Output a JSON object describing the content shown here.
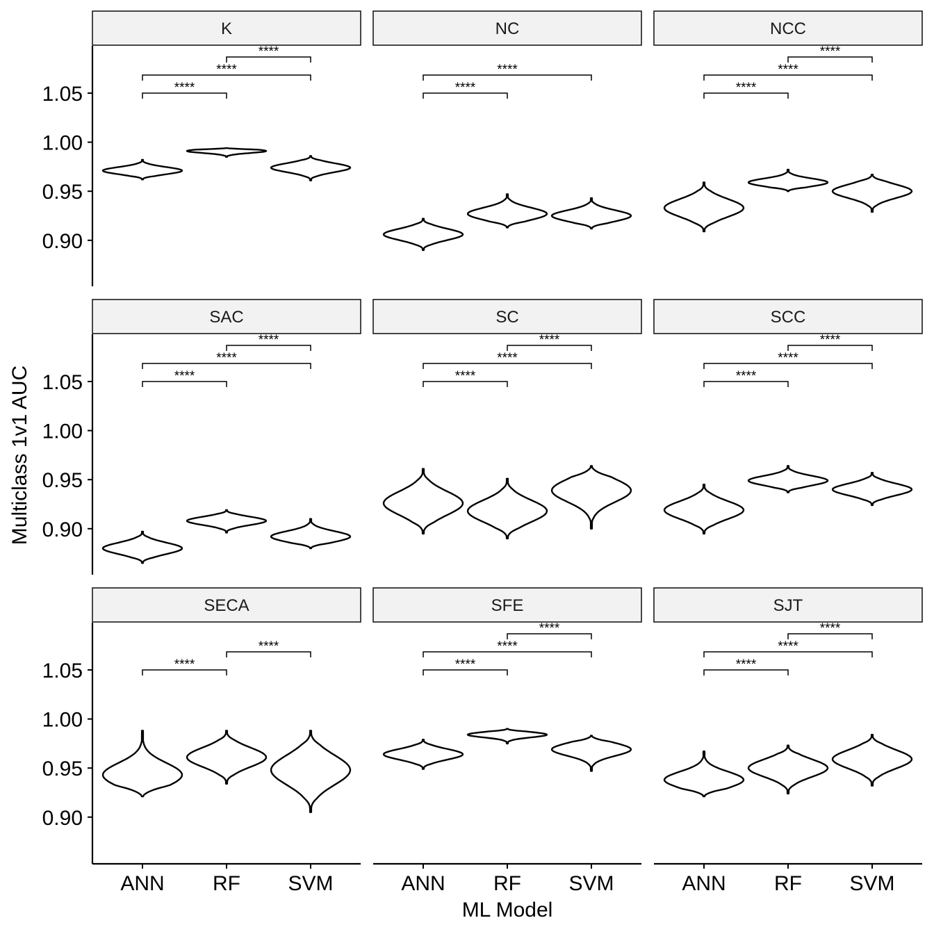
{
  "chart_data": {
    "type": "violin",
    "xlabel": "ML Model",
    "ylabel": "Multiclass 1v1 AUC",
    "categories": [
      "ANN",
      "RF",
      "SVM"
    ],
    "yticks": [
      0.9,
      0.95,
      1.0,
      1.05
    ],
    "ylim": [
      0.855,
      1.1
    ],
    "facets": [
      {
        "label": "K",
        "violins": [
          {
            "model": "ANN",
            "min": 0.962,
            "max": 0.982,
            "median": 0.971
          },
          {
            "model": "RF",
            "min": 0.985,
            "max": 0.994,
            "median": 0.991
          },
          {
            "model": "SVM",
            "min": 0.961,
            "max": 0.986,
            "median": 0.974
          }
        ],
        "comparisons": [
          {
            "group1": "ANN",
            "group2": "RF",
            "label": "****"
          },
          {
            "group1": "ANN",
            "group2": "SVM",
            "label": "****"
          },
          {
            "group1": "RF",
            "group2": "SVM",
            "label": "****"
          }
        ]
      },
      {
        "label": "NC",
        "violins": [
          {
            "model": "ANN",
            "min": 0.89,
            "max": 0.922,
            "median": 0.906
          },
          {
            "model": "RF",
            "min": 0.913,
            "max": 0.947,
            "median": 0.927
          },
          {
            "model": "SVM",
            "min": 0.912,
            "max": 0.943,
            "median": 0.925
          }
        ],
        "comparisons": [
          {
            "group1": "ANN",
            "group2": "RF",
            "label": "****"
          },
          {
            "group1": "ANN",
            "group2": "SVM",
            "label": "****"
          }
        ]
      },
      {
        "label": "NCC",
        "violins": [
          {
            "model": "ANN",
            "min": 0.909,
            "max": 0.959,
            "median": 0.933
          },
          {
            "model": "RF",
            "min": 0.95,
            "max": 0.972,
            "median": 0.959
          },
          {
            "model": "SVM",
            "min": 0.929,
            "max": 0.967,
            "median": 0.95
          }
        ],
        "comparisons": [
          {
            "group1": "ANN",
            "group2": "RF",
            "label": "****"
          },
          {
            "group1": "ANN",
            "group2": "SVM",
            "label": "****"
          },
          {
            "group1": "RF",
            "group2": "SVM",
            "label": "****"
          }
        ]
      },
      {
        "label": "SAC",
        "violins": [
          {
            "model": "ANN",
            "min": 0.865,
            "max": 0.897,
            "median": 0.88
          },
          {
            "model": "RF",
            "min": 0.896,
            "max": 0.919,
            "median": 0.908
          },
          {
            "model": "SVM",
            "min": 0.88,
            "max": 0.91,
            "median": 0.892
          }
        ],
        "comparisons": [
          {
            "group1": "ANN",
            "group2": "RF",
            "label": "****"
          },
          {
            "group1": "ANN",
            "group2": "SVM",
            "label": "****"
          },
          {
            "group1": "RF",
            "group2": "SVM",
            "label": "****"
          }
        ]
      },
      {
        "label": "SC",
        "violins": [
          {
            "model": "ANN",
            "min": 0.895,
            "max": 0.961,
            "median": 0.926
          },
          {
            "model": "RF",
            "min": 0.89,
            "max": 0.951,
            "median": 0.918
          },
          {
            "model": "SVM",
            "min": 0.9,
            "max": 0.964,
            "median": 0.939
          }
        ],
        "comparisons": [
          {
            "group1": "ANN",
            "group2": "RF",
            "label": "****"
          },
          {
            "group1": "ANN",
            "group2": "SVM",
            "label": "****"
          },
          {
            "group1": "RF",
            "group2": "SVM",
            "label": "****"
          }
        ]
      },
      {
        "label": "SCC",
        "violins": [
          {
            "model": "ANN",
            "min": 0.895,
            "max": 0.945,
            "median": 0.919
          },
          {
            "model": "RF",
            "min": 0.937,
            "max": 0.964,
            "median": 0.949
          },
          {
            "model": "SVM",
            "min": 0.924,
            "max": 0.957,
            "median": 0.94
          }
        ],
        "comparisons": [
          {
            "group1": "ANN",
            "group2": "RF",
            "label": "****"
          },
          {
            "group1": "ANN",
            "group2": "SVM",
            "label": "****"
          },
          {
            "group1": "RF",
            "group2": "SVM",
            "label": "****"
          }
        ]
      },
      {
        "label": "SECA",
        "violins": [
          {
            "model": "ANN",
            "min": 0.921,
            "max": 0.988,
            "median": 0.943
          },
          {
            "model": "RF",
            "min": 0.934,
            "max": 0.988,
            "median": 0.961
          },
          {
            "model": "SVM",
            "min": 0.905,
            "max": 0.988,
            "median": 0.948
          }
        ],
        "comparisons": [
          {
            "group1": "ANN",
            "group2": "RF",
            "label": "****"
          },
          {
            "group1": "RF",
            "group2": "SVM",
            "label": "****"
          }
        ]
      },
      {
        "label": "SFE",
        "violins": [
          {
            "model": "ANN",
            "min": 0.949,
            "max": 0.979,
            "median": 0.964
          },
          {
            "model": "RF",
            "min": 0.975,
            "max": 0.99,
            "median": 0.984
          },
          {
            "model": "SVM",
            "min": 0.947,
            "max": 0.983,
            "median": 0.969
          }
        ],
        "comparisons": [
          {
            "group1": "ANN",
            "group2": "RF",
            "label": "****"
          },
          {
            "group1": "ANN",
            "group2": "SVM",
            "label": "****"
          },
          {
            "group1": "RF",
            "group2": "SVM",
            "label": "****"
          }
        ]
      },
      {
        "label": "SJT",
        "violins": [
          {
            "model": "ANN",
            "min": 0.921,
            "max": 0.967,
            "median": 0.938
          },
          {
            "model": "RF",
            "min": 0.924,
            "max": 0.973,
            "median": 0.95
          },
          {
            "model": "SVM",
            "min": 0.932,
            "max": 0.984,
            "median": 0.959
          }
        ],
        "comparisons": [
          {
            "group1": "ANN",
            "group2": "RF",
            "label": "****"
          },
          {
            "group1": "ANN",
            "group2": "SVM",
            "label": "****"
          },
          {
            "group1": "RF",
            "group2": "SVM",
            "label": "****"
          }
        ]
      }
    ]
  }
}
